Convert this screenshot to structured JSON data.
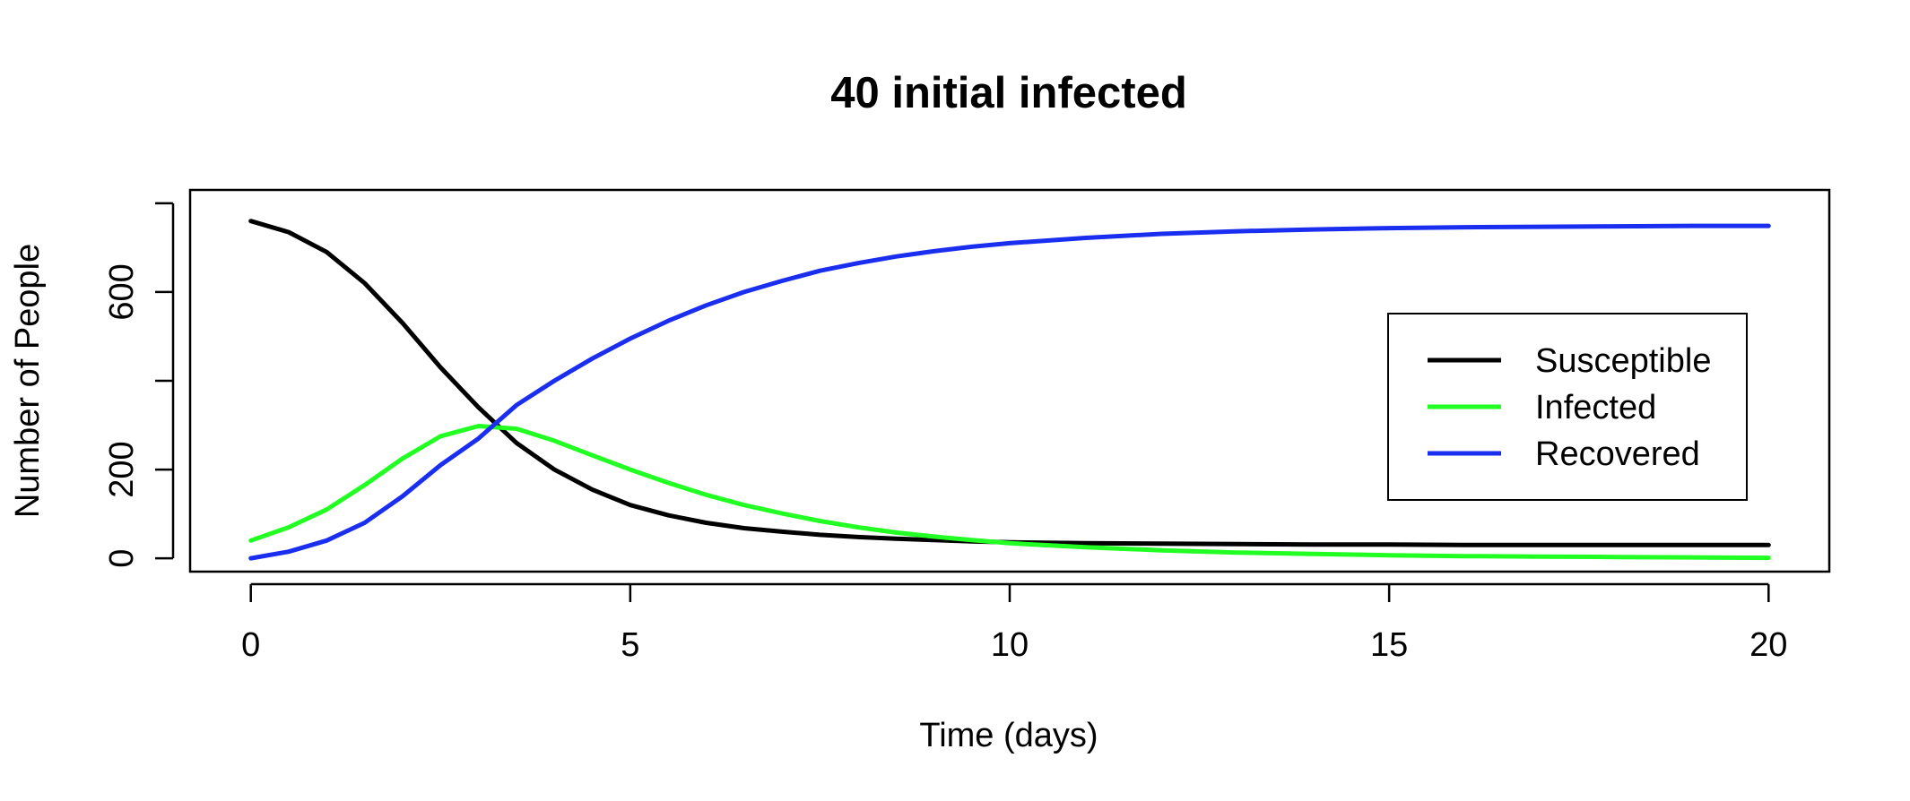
{
  "chart_data": {
    "type": "line",
    "title": "40 initial infected",
    "xlabel": "Time (days)",
    "ylabel": "Number of People",
    "xlim": [
      -0.8,
      20.8
    ],
    "ylim": [
      -30,
      830
    ],
    "xticks": [
      0,
      5,
      10,
      15,
      20
    ],
    "xtick_labels": [
      "0",
      "5",
      "10",
      "15",
      "20"
    ],
    "yticks": [
      0,
      200,
      400,
      600,
      800
    ],
    "ytick_labels": [
      "0",
      "200",
      "",
      "600",
      ""
    ],
    "grid": false,
    "legend_position": "right",
    "x": [
      0,
      0.5,
      1,
      1.5,
      2,
      2.5,
      3,
      3.5,
      4,
      4.5,
      5,
      5.5,
      6,
      6.5,
      7,
      7.5,
      8,
      8.5,
      9,
      9.5,
      10,
      11,
      12,
      13,
      14,
      15,
      16,
      17,
      18,
      19,
      20
    ],
    "series": [
      {
        "name": "Susceptible",
        "color": "#000000",
        "values": [
          760,
          735,
          690,
          620,
          530,
          430,
          340,
          260,
          200,
          155,
          120,
          97,
          80,
          68,
          60,
          53,
          48,
          44,
          41,
          38,
          36,
          34,
          33,
          32,
          31,
          31,
          30,
          30,
          30,
          30,
          30
        ]
      },
      {
        "name": "Infected",
        "color": "#22ff22",
        "values": [
          40,
          70,
          110,
          165,
          225,
          275,
          298,
          292,
          265,
          232,
          200,
          170,
          143,
          120,
          101,
          84,
          70,
          58,
          49,
          41,
          34,
          25,
          18,
          13,
          10,
          7,
          5,
          4,
          3,
          2,
          1
        ]
      },
      {
        "name": "Recovered",
        "color": "#1a2ef0",
        "values": [
          0,
          15,
          40,
          80,
          140,
          210,
          270,
          345,
          400,
          450,
          495,
          535,
          570,
          600,
          625,
          648,
          665,
          680,
          692,
          702,
          710,
          722,
          731,
          737,
          741,
          744,
          746,
          747,
          748,
          749,
          749
        ]
      }
    ]
  }
}
